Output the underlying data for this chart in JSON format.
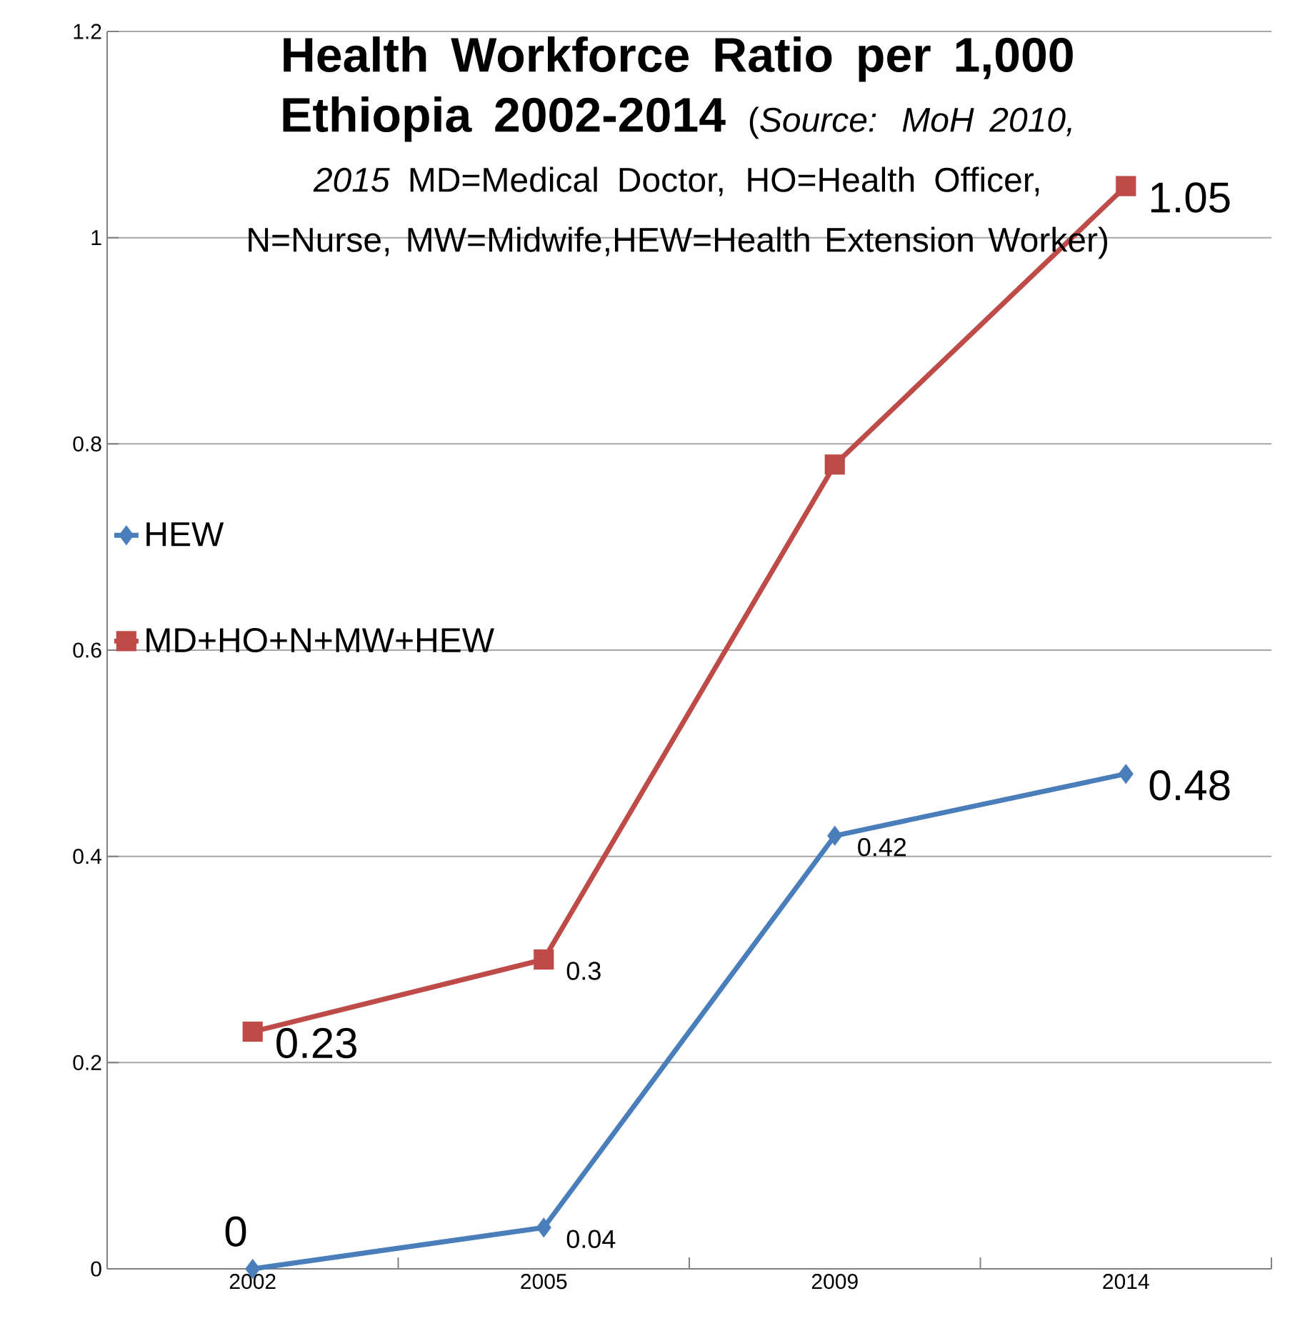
{
  "chart_data": {
    "type": "line",
    "title": "Health Workforce Ratio per 1,000 Ethiopia 2002-2014",
    "subtitle": "(*Source: MoH 2010, 2015* MD=Medical Doctor, HO=Health Officer, N=Nurse, MW=Midwife,HEW=Health Extension Worker)",
    "categories": [
      "2002",
      "2005",
      "2009",
      "2014"
    ],
    "series": [
      {
        "name": "HEW",
        "color": "#4a7ebb",
        "marker": "diamond",
        "values": [
          0,
          0.04,
          0.42,
          0.48
        ],
        "value_labels": [
          "0",
          "0.04",
          "0.42",
          "0.48"
        ]
      },
      {
        "name": "MD+HO+N+MW+HEW",
        "color": "#be4b48",
        "marker": "square",
        "values": [
          0.23,
          0.3,
          0.78,
          1.05
        ],
        "value_labels": [
          "0.23",
          "0.3",
          null,
          "1.05"
        ]
      }
    ],
    "ylim": [
      0,
      1.2
    ],
    "yticks": [
      0,
      0.2,
      0.4,
      0.6,
      0.8,
      1,
      1.2
    ],
    "grid": "y",
    "legend": "left"
  }
}
